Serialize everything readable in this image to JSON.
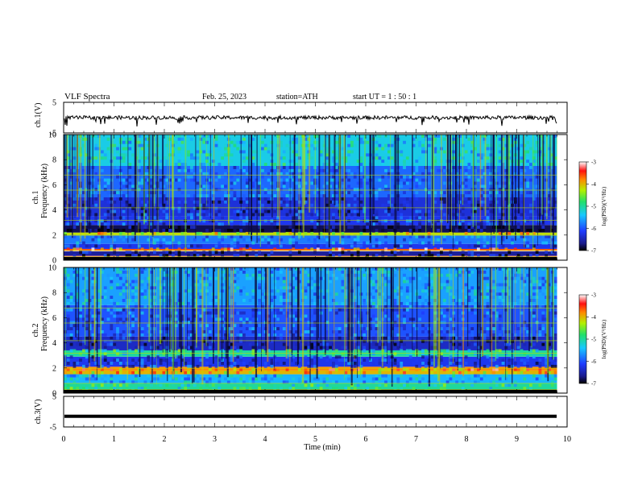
{
  "header": {
    "title": "VLF  Spectra",
    "date": "Feb. 25, 2023",
    "station": "station=ATH",
    "start_ut": "start  UT  =    1 : 50 : 1"
  },
  "chart_data": [
    {
      "type": "line",
      "panel": "ch1-waveform",
      "ylabel": "ch.1(V)",
      "ylim": [
        -5,
        5
      ],
      "yticks": [
        "5",
        "-5"
      ],
      "x_range_min": [
        0,
        9.8
      ],
      "level_v": 0,
      "trace_color": "#000000"
    },
    {
      "type": "heatmap",
      "panel": "ch1-spectrogram",
      "ylabel": "ch.1\nFrequency (kHz)",
      "ylim": [
        0,
        10
      ],
      "yticks": [
        "0",
        "2",
        "4",
        "6",
        "8",
        "10"
      ],
      "x_range_min": [
        0,
        9.8
      ],
      "colorbar": {
        "label": "log(PSD)(V²/Hz)",
        "range": [
          -7,
          -3
        ],
        "ticks": [
          "-3",
          "-4",
          "-5",
          "-6",
          "-7"
        ]
      },
      "bands": [
        {
          "khz": [
            0,
            0.25
          ],
          "level": -7
        },
        {
          "khz": [
            0.25,
            0.35
          ],
          "level": -3.2
        },
        {
          "khz": [
            0.35,
            0.7
          ],
          "level": -6.6
        },
        {
          "khz": [
            0.75,
            0.9
          ],
          "level": -3.6
        },
        {
          "khz": [
            0.9,
            1.3
          ],
          "level": -6.2
        },
        {
          "khz": [
            1.3,
            2.0
          ],
          "level": -5.8
        },
        {
          "khz": [
            2.0,
            2.2
          ],
          "level": -4.2
        },
        {
          "khz": [
            2.2,
            2.8
          ],
          "level": -6.8
        },
        {
          "khz": [
            2.8,
            3.5
          ],
          "level": -6.2
        },
        {
          "khz": [
            3.5,
            5.0
          ],
          "level": -6.3
        },
        {
          "khz": [
            5.0,
            7.5
          ],
          "level": -5.9
        },
        {
          "khz": [
            7.5,
            10.0
          ],
          "level": -5.3
        }
      ]
    },
    {
      "type": "heatmap",
      "panel": "ch2-spectrogram",
      "ylabel": "ch.2\nFrequency (kHz)",
      "ylim": [
        0,
        10
      ],
      "yticks": [
        "0",
        "2",
        "4",
        "6",
        "8",
        "10"
      ],
      "x_range_min": [
        0,
        9.8
      ],
      "colorbar": {
        "label": "log(PSD)(V²/Hz)",
        "range": [
          -7,
          -3
        ],
        "ticks": [
          "-3",
          "-4",
          "-5",
          "-6",
          "-7"
        ]
      },
      "bands": [
        {
          "khz": [
            0,
            0.3
          ],
          "level": -7
        },
        {
          "khz": [
            0.3,
            0.8
          ],
          "level": -5.0
        },
        {
          "khz": [
            0.8,
            1.5
          ],
          "level": -5.5
        },
        {
          "khz": [
            1.5,
            1.8
          ],
          "level": -4.0
        },
        {
          "khz": [
            1.8,
            2.1
          ],
          "level": -3.8
        },
        {
          "khz": [
            2.1,
            2.9
          ],
          "level": -6.2
        },
        {
          "khz": [
            2.9,
            3.4
          ],
          "level": -5.0
        },
        {
          "khz": [
            3.4,
            4.5
          ],
          "level": -6.4
        },
        {
          "khz": [
            4.5,
            7.0
          ],
          "level": -6.0
        },
        {
          "khz": [
            7.0,
            10.0
          ],
          "level": -5.6
        }
      ]
    },
    {
      "type": "line",
      "panel": "ch3-waveform",
      "ylabel": "ch.3(V)",
      "ylim": [
        -5,
        5
      ],
      "yticks": [
        "5",
        "-5"
      ],
      "x_range_min": [
        0,
        9.8
      ],
      "level_v": -1.5,
      "trace_color": "#000000",
      "xlabel": "Time  (min)",
      "xlim": [
        0,
        10
      ],
      "xticks": [
        "0",
        "1",
        "2",
        "3",
        "4",
        "5",
        "6",
        "7",
        "8",
        "9",
        "10"
      ]
    }
  ]
}
